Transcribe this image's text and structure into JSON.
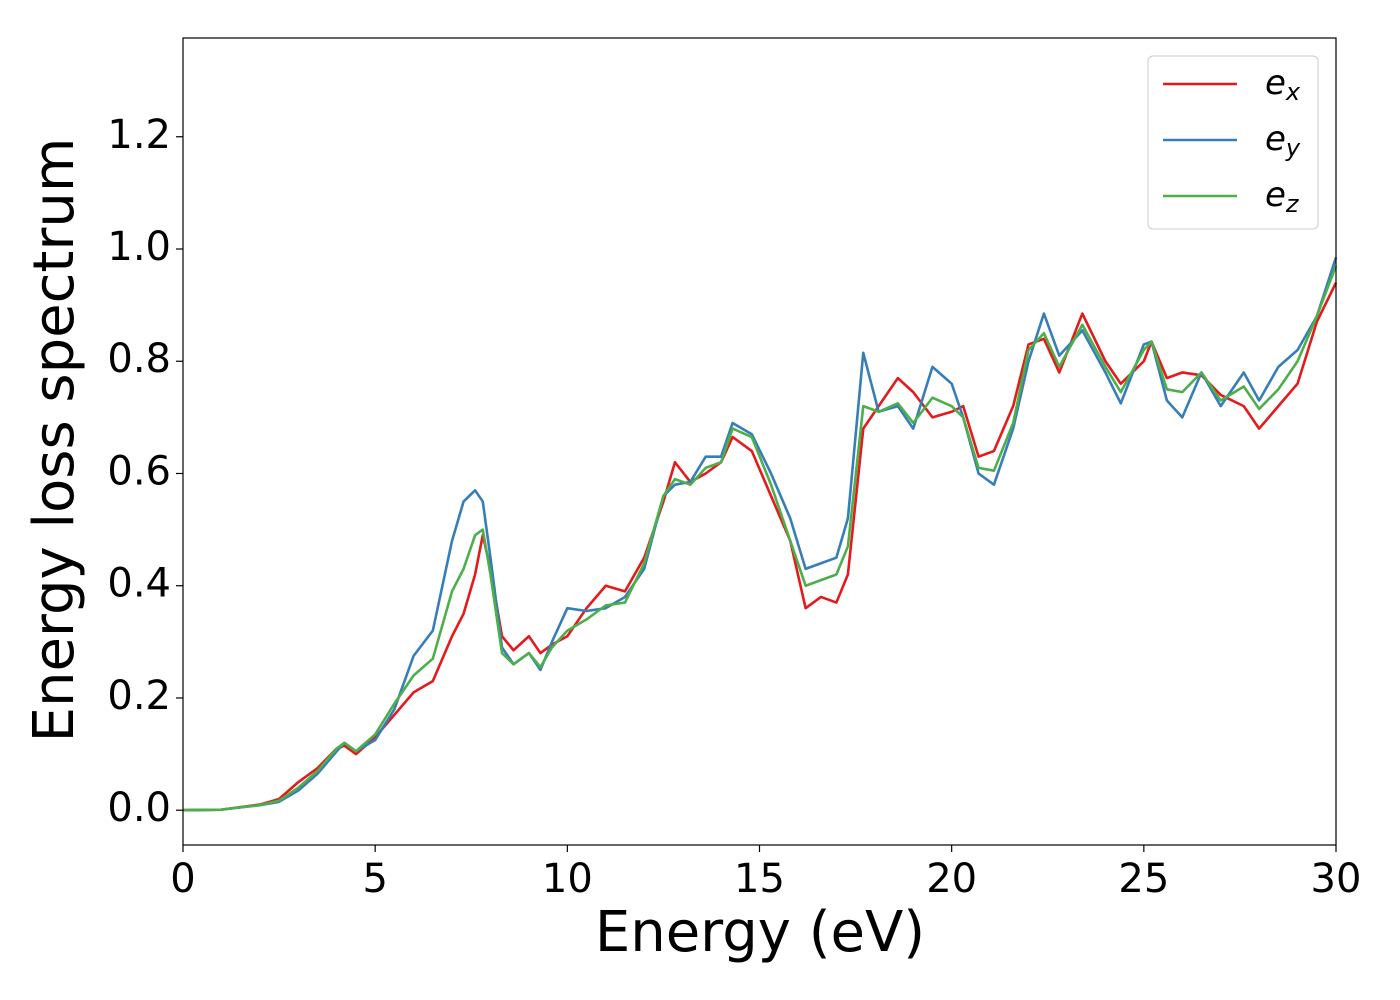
{
  "chart_data": {
    "type": "line",
    "xlabel": "Energy (eV)",
    "ylabel": "Energy loss spectrum",
    "x": [
      0,
      1,
      2,
      2.5,
      3,
      3.5,
      4,
      4.2,
      4.5,
      5,
      5.5,
      6,
      6.5,
      7,
      7.3,
      7.6,
      7.8,
      8,
      8.3,
      8.6,
      9,
      9.3,
      9.6,
      10,
      10.5,
      11,
      11.5,
      12,
      12.5,
      12.8,
      13.2,
      13.6,
      14,
      14.3,
      14.8,
      15.3,
      15.8,
      16.2,
      16.6,
      17,
      17.3,
      17.7,
      18.1,
      18.6,
      19,
      19.5,
      20,
      20.3,
      20.7,
      21.1,
      21.6,
      22,
      22.4,
      22.8,
      23.4,
      24,
      24.4,
      25,
      25.2,
      25.6,
      26,
      26.5,
      27,
      27.6,
      28,
      28.5,
      29,
      29.5,
      30
    ],
    "series": [
      {
        "name": "e_x",
        "color": "#e41a1c",
        "values": [
          0,
          0.001,
          0.01,
          0.02,
          0.05,
          0.075,
          0.11,
          0.115,
          0.1,
          0.13,
          0.17,
          0.21,
          0.23,
          0.31,
          0.35,
          0.42,
          0.49,
          0.43,
          0.31,
          0.285,
          0.31,
          0.28,
          0.295,
          0.31,
          0.36,
          0.4,
          0.39,
          0.45,
          0.55,
          0.62,
          0.585,
          0.6,
          0.62,
          0.665,
          0.64,
          0.56,
          0.48,
          0.36,
          0.38,
          0.37,
          0.42,
          0.68,
          0.72,
          0.77,
          0.745,
          0.7,
          0.71,
          0.72,
          0.63,
          0.64,
          0.72,
          0.83,
          0.84,
          0.78,
          0.885,
          0.8,
          0.76,
          0.8,
          0.835,
          0.77,
          0.78,
          0.775,
          0.74,
          0.72,
          0.68,
          0.72,
          0.76,
          0.87,
          0.94
        ]
      },
      {
        "name": "e_y",
        "color": "#377eb8",
        "values": [
          0,
          0.001,
          0.009,
          0.015,
          0.035,
          0.065,
          0.105,
          0.12,
          0.105,
          0.125,
          0.18,
          0.275,
          0.32,
          0.48,
          0.55,
          0.57,
          0.55,
          0.45,
          0.29,
          0.26,
          0.28,
          0.25,
          0.3,
          0.36,
          0.355,
          0.36,
          0.38,
          0.43,
          0.56,
          0.58,
          0.585,
          0.63,
          0.63,
          0.69,
          0.67,
          0.6,
          0.52,
          0.43,
          0.44,
          0.45,
          0.52,
          0.815,
          0.71,
          0.72,
          0.68,
          0.79,
          0.76,
          0.7,
          0.6,
          0.58,
          0.68,
          0.8,
          0.885,
          0.81,
          0.855,
          0.78,
          0.725,
          0.83,
          0.835,
          0.73,
          0.7,
          0.78,
          0.72,
          0.78,
          0.73,
          0.79,
          0.82,
          0.88,
          0.985
        ]
      },
      {
        "name": "e_z",
        "color": "#4daf4a",
        "values": [
          0,
          0.001,
          0.009,
          0.017,
          0.04,
          0.07,
          0.11,
          0.12,
          0.105,
          0.135,
          0.19,
          0.24,
          0.27,
          0.39,
          0.43,
          0.49,
          0.5,
          0.42,
          0.28,
          0.26,
          0.28,
          0.255,
          0.29,
          0.32,
          0.34,
          0.365,
          0.37,
          0.44,
          0.56,
          0.59,
          0.58,
          0.61,
          0.62,
          0.68,
          0.665,
          0.58,
          0.48,
          0.4,
          0.41,
          0.42,
          0.47,
          0.72,
          0.71,
          0.725,
          0.69,
          0.735,
          0.72,
          0.7,
          0.61,
          0.605,
          0.69,
          0.82,
          0.85,
          0.79,
          0.865,
          0.79,
          0.745,
          0.82,
          0.835,
          0.75,
          0.745,
          0.78,
          0.73,
          0.755,
          0.715,
          0.75,
          0.8,
          0.88,
          0.97
        ]
      }
    ],
    "xlim": [
      0,
      30
    ],
    "xticks": [
      0,
      5,
      10,
      15,
      20,
      25,
      30
    ],
    "ylim": [
      -0.062,
      1.376
    ],
    "yticks": [
      {
        "value": 0,
        "label": "0.0"
      },
      0.2,
      0.4,
      0.6,
      0.8,
      {
        "value": 1,
        "label": "1.0"
      },
      1.2
    ],
    "legend": "upper right",
    "grid": false
  }
}
